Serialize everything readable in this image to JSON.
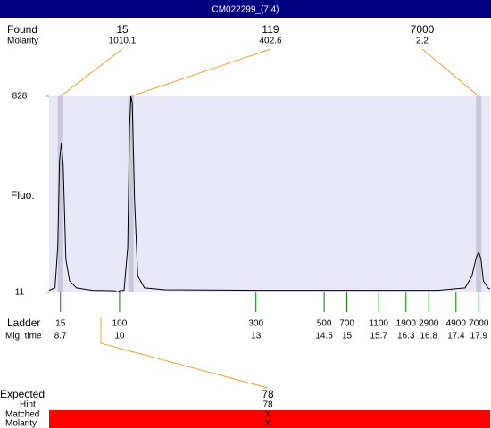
{
  "title": "CM022299_(7:4)",
  "found": {
    "label": "Found",
    "molarity_label": "Molarity",
    "sizes": [
      15,
      119,
      7000
    ],
    "molarities": [
      1010.1,
      402.6,
      2.2
    ],
    "times": [
      8.7,
      10.25,
      17.9
    ]
  },
  "chart_data": {
    "type": "line",
    "ylabel": "Fluo.",
    "ylim": [
      11,
      828
    ],
    "yticks": [
      11,
      828
    ],
    "xlim": [
      8.45,
      18.15
    ],
    "x": [
      8.45,
      8.58,
      8.64,
      8.68,
      8.72,
      8.76,
      8.82,
      8.9,
      9.05,
      9.4,
      9.9,
      9.95,
      10.0,
      10.1,
      10.18,
      10.22,
      10.25,
      10.28,
      10.33,
      10.4,
      10.55,
      11,
      13,
      17,
      17.6,
      17.75,
      17.85,
      17.9,
      17.95,
      18.0,
      18.1,
      18.15
    ],
    "series": [
      {
        "color": "#000000",
        "values": [
          20,
          30,
          200,
          560,
          635,
          540,
          150,
          60,
          30,
          20,
          18,
          12,
          18,
          20,
          200,
          700,
          828,
          800,
          400,
          80,
          30,
          22,
          20,
          20,
          30,
          80,
          160,
          178,
          150,
          60,
          30,
          25
        ]
      }
    ]
  },
  "ladder": {
    "label": "Ladder",
    "time_label": "Mig. time",
    "sizes": [
      15,
      100,
      300,
      500,
      700,
      1100,
      1900,
      2900,
      4900,
      7000
    ],
    "times": [
      8.7,
      10,
      13,
      14.5,
      15,
      15.7,
      16.3,
      16.8,
      17.4,
      17.9
    ]
  },
  "expected": {
    "label": "Expected",
    "value": 78,
    "hint_label": "Hint",
    "hint": 78,
    "matched_label": "Matched",
    "matched": "X",
    "molarity_label": "Molarity",
    "molarity": "X"
  }
}
